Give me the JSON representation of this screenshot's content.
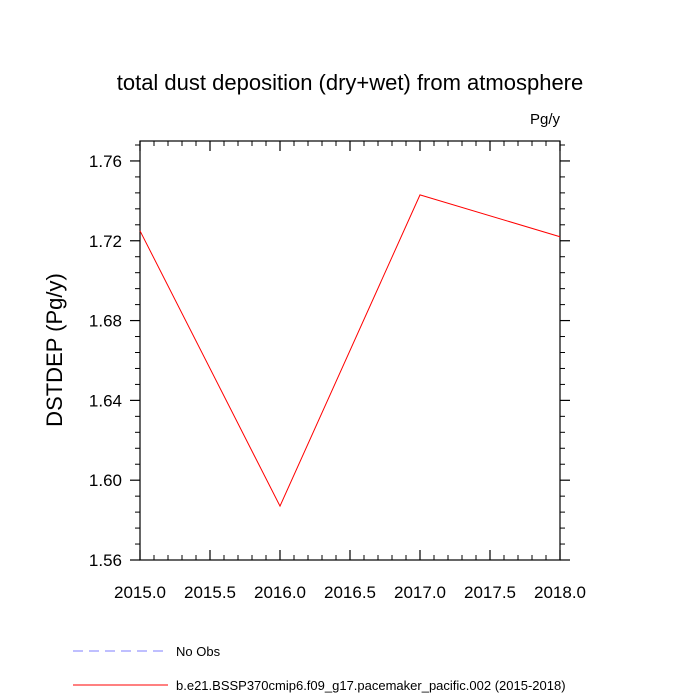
{
  "chart_data": {
    "type": "line",
    "title": "total dust deposition (dry+wet) from atmosphere",
    "units_label": "Pg/y",
    "xlabel": "",
    "ylabel": "DSTDEP  (Pg/y)",
    "xlim": [
      2015.0,
      2018.0
    ],
    "ylim": [
      1.56,
      1.77
    ],
    "x_ticks": [
      2015.0,
      2015.5,
      2016.0,
      2016.5,
      2017.0,
      2017.5,
      2018.0
    ],
    "x_tick_labels": [
      "2015.0",
      "2015.5",
      "2016.0",
      "2016.5",
      "2017.0",
      "2017.5",
      "2018.0"
    ],
    "y_ticks": [
      1.56,
      1.6,
      1.64,
      1.68,
      1.72,
      1.76
    ],
    "y_tick_labels": [
      "1.56",
      "1.60",
      "1.64",
      "1.68",
      "1.72",
      "1.76"
    ],
    "grid": false,
    "legend_position": "bottom-left",
    "series": [
      {
        "name": "b.e21.BSSP370cmip6.f09_g17.pacemaker_pacific.002 (2015-2018)",
        "color": "#ff0000",
        "dash": "solid",
        "x": [
          2015.0,
          2016.0,
          2017.0,
          2018.0
        ],
        "values": [
          1.725,
          1.587,
          1.743,
          1.722
        ]
      },
      {
        "name": "No Obs",
        "color": "#7f7fff",
        "dash": "dashed",
        "x": [],
        "values": []
      }
    ]
  }
}
